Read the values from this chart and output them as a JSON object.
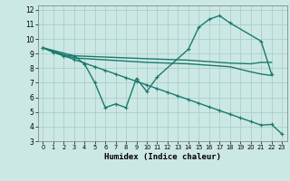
{
  "xlabel": "Humidex (Indice chaleur)",
  "ylabel": "",
  "background_color": "#cce8e4",
  "grid_color": "#aacfcc",
  "line_color": "#1a7a6e",
  "xlim": [
    -0.5,
    23.5
  ],
  "ylim": [
    3,
    12.3
  ],
  "yticks": [
    3,
    4,
    5,
    6,
    7,
    8,
    9,
    10,
    11,
    12
  ],
  "xticks": [
    0,
    1,
    2,
    3,
    4,
    5,
    6,
    7,
    8,
    9,
    10,
    11,
    12,
    13,
    14,
    15,
    16,
    17,
    18,
    19,
    20,
    21,
    22,
    23
  ],
  "lines": [
    {
      "x": [
        0,
        1,
        2,
        3,
        4,
        5,
        6,
        7,
        8,
        9,
        10,
        11,
        14,
        15,
        16,
        17,
        18,
        21,
        22
      ],
      "y": [
        9.4,
        9.1,
        8.85,
        8.85,
        8.3,
        7.0,
        5.3,
        5.55,
        5.3,
        7.3,
        6.4,
        7.4,
        9.3,
        10.8,
        11.35,
        11.6,
        11.1,
        9.85,
        7.6
      ],
      "marker": true,
      "lw": 1.0
    },
    {
      "x": [
        0,
        3,
        10,
        14,
        16,
        18,
        20,
        21,
        22
      ],
      "y": [
        9.4,
        8.85,
        8.65,
        8.55,
        8.45,
        8.35,
        8.3,
        8.4,
        8.4
      ],
      "marker": false,
      "lw": 1.0
    },
    {
      "x": [
        0,
        3,
        10,
        14,
        16,
        18,
        20,
        21,
        22
      ],
      "y": [
        9.4,
        8.7,
        8.4,
        8.3,
        8.2,
        8.1,
        7.75,
        7.6,
        7.5
      ],
      "marker": false,
      "lw": 1.0
    },
    {
      "x": [
        0,
        1,
        2,
        3,
        4,
        5,
        6,
        7,
        8,
        9,
        10,
        11,
        12,
        13,
        14,
        15,
        16,
        17,
        18,
        19,
        20,
        21,
        22,
        23
      ],
      "y": [
        9.4,
        9.1,
        8.85,
        8.6,
        8.35,
        8.1,
        7.85,
        7.6,
        7.35,
        7.1,
        6.85,
        6.6,
        6.35,
        6.1,
        5.85,
        5.6,
        5.35,
        5.1,
        4.85,
        4.6,
        4.35,
        4.1,
        4.15,
        3.5
      ],
      "marker": true,
      "lw": 1.0
    }
  ]
}
